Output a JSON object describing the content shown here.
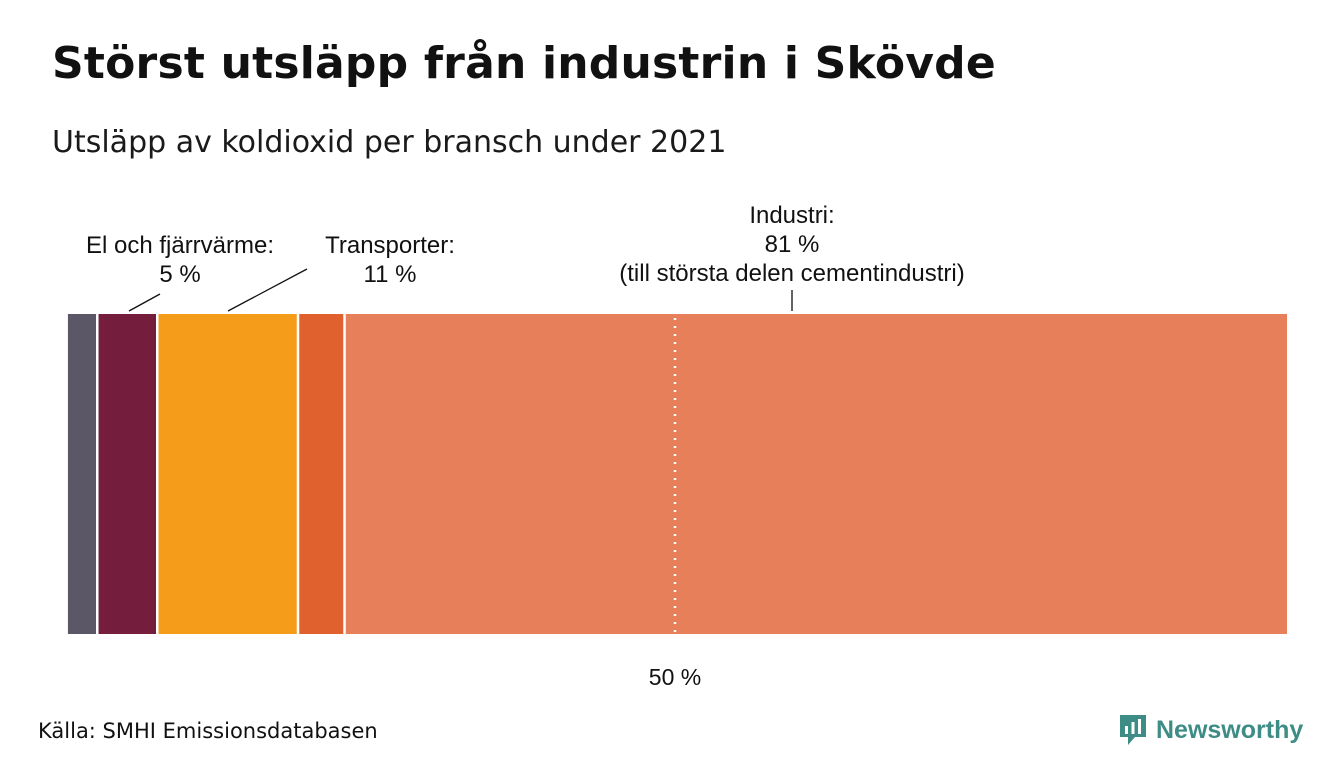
{
  "title": "Störst utsläpp från industrin i Skövde",
  "subtitle": "Utsläpp av koldioxid per bransch under 2021",
  "source": "Källa: SMHI Emissionsdatabasen",
  "logo": {
    "name": "Newsworthy",
    "color": "#3e8c86"
  },
  "chart_data": {
    "type": "bar",
    "orientation": "horizontal-stacked-100",
    "unit": "%",
    "xlim": [
      0,
      100
    ],
    "reference_line": {
      "value": 50,
      "label": "50 %"
    },
    "segments": [
      {
        "value": 0.3,
        "color": "#ffffff"
      },
      {
        "value": 2.5,
        "color": "#5b5766"
      },
      {
        "value": 4.9,
        "color": "#741d3c",
        "label": [
          "El och fjärrvärme:",
          "5 %"
        ]
      },
      {
        "value": 11.5,
        "color": "#f59d1b",
        "label": [
          "Transporter:",
          "11 %"
        ]
      },
      {
        "value": 3.8,
        "color": "#e0602e"
      },
      {
        "value": 77.0,
        "color": "#e77f5a",
        "label": [
          "Industri:",
          "81 %",
          "(till största delen cementindustri)"
        ]
      }
    ]
  }
}
